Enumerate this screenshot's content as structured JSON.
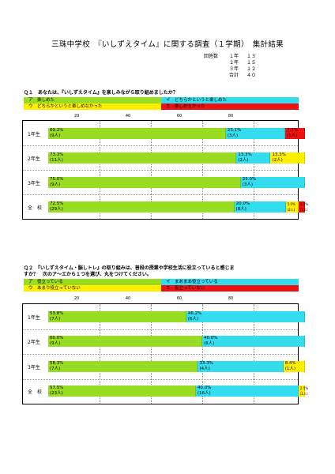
{
  "title": "三珠中学校　『いしずえタイム』に関する調査（１学期）　集計結果",
  "respondents": {
    "label": "回答数",
    "rows": [
      {
        "grade": "１年",
        "value": "１３"
      },
      {
        "grade": "２年",
        "value": "１５"
      },
      {
        "grade": "３年",
        "value": "１２"
      },
      {
        "grade": "合計",
        "value": "４０"
      }
    ]
  },
  "q1": {
    "text": "Ｑ１　あなたは、『いしずえタイム』を楽しみながら取り組めましたか？",
    "options": [
      "ア　楽しめた",
      "イ　どちらかというと楽しめた",
      "ウ　どちらかというと楽しめなかった",
      "エ　楽しめなかった"
    ],
    "axis_ticks": [
      "20",
      "40",
      "60",
      "80"
    ]
  },
  "q2": {
    "text_line1": "Ｑ２　『いしずえタイム・脳しトレ』の取り組みは、普段の授業や学校生活に役立っていると感じま",
    "text_line2": "すか？　次のア～エから１つを選び、丸をつけてください。",
    "options": [
      "ア　役立っている",
      "イ　まあまあ役立っている",
      "ウ　あまり役立っていない",
      "エ　役立っていない"
    ],
    "axis_ticks": [
      "20",
      "40",
      "60",
      "80"
    ]
  },
  "colors": {
    "a": "#99dd22",
    "b": "#33ddee",
    "c": "#ffee00",
    "d": "#ee1111"
  },
  "chart_data": [
    {
      "type": "bar",
      "stacked": true,
      "orientation": "horizontal",
      "categories": [
        "1年生",
        "2年生",
        "3年生",
        "全　校"
      ],
      "xlim": [
        0,
        100
      ],
      "series": [
        {
          "name": "ア　楽しめた",
          "values": [
            69.2,
            73.3,
            75.0,
            72.5
          ],
          "labels": [
            "69.2%",
            "73.3%",
            "75.0%",
            "72.5%"
          ],
          "counts": [
            "(9人)",
            "(11人)",
            "(9人)",
            "(29人)"
          ]
        },
        {
          "name": "イ　どちらかというと楽しめた",
          "values": [
            23.1,
            13.3,
            25.0,
            20.0
          ],
          "labels": [
            "23.1%",
            "13.3%",
            "25.0%",
            "20.0%"
          ],
          "counts": [
            "(3人)",
            "(2人)",
            "(3人)",
            "(8人)"
          ]
        },
        {
          "name": "ウ　どちらかというと楽しめなかった",
          "values": [
            0,
            13.3,
            0,
            5.0
          ],
          "labels": [
            "",
            "13.3%",
            "",
            "5.0%"
          ],
          "counts": [
            "",
            "(2人)",
            "",
            "(2人)"
          ]
        },
        {
          "name": "エ　楽しめなかった",
          "values": [
            7.7,
            0,
            0,
            2.5
          ],
          "labels": [
            "7.7%",
            "",
            "",
            "2.5%"
          ],
          "counts": [
            "(1人)",
            "",
            "",
            "(1人)"
          ]
        }
      ]
    },
    {
      "type": "bar",
      "stacked": true,
      "orientation": "horizontal",
      "categories": [
        "1年生",
        "2年生",
        "3年生",
        "全　校"
      ],
      "xlim": [
        0,
        100
      ],
      "series": [
        {
          "name": "ア　役立っている",
          "values": [
            53.8,
            60.0,
            58.3,
            57.5
          ],
          "labels": [
            "53.8%",
            "60.0%",
            "58.3%",
            "57.5%"
          ],
          "counts": [
            "(7人)",
            "(9人)",
            "(7人)",
            "(23人)"
          ]
        },
        {
          "name": "イ　まあまあ役立っている",
          "values": [
            46.2,
            40.0,
            33.3,
            40.0
          ],
          "labels": [
            "46.2%",
            "40.0%",
            "33.3%",
            "40.0%"
          ],
          "counts": [
            "(6人)",
            "(6人)",
            "(4人)",
            "(16人)"
          ]
        },
        {
          "name": "ウ　あまり役立っていない",
          "values": [
            0,
            0,
            8.4,
            2.5
          ],
          "labels": [
            "",
            "",
            "8.4%",
            "2.5%"
          ],
          "counts": [
            "",
            "",
            "(1人)",
            "(1人)"
          ]
        },
        {
          "name": "エ　役立っていない",
          "values": [
            0,
            0,
            0,
            0
          ],
          "labels": [
            "",
            "",
            "",
            ""
          ],
          "counts": [
            "",
            "",
            "",
            ""
          ]
        }
      ]
    }
  ]
}
